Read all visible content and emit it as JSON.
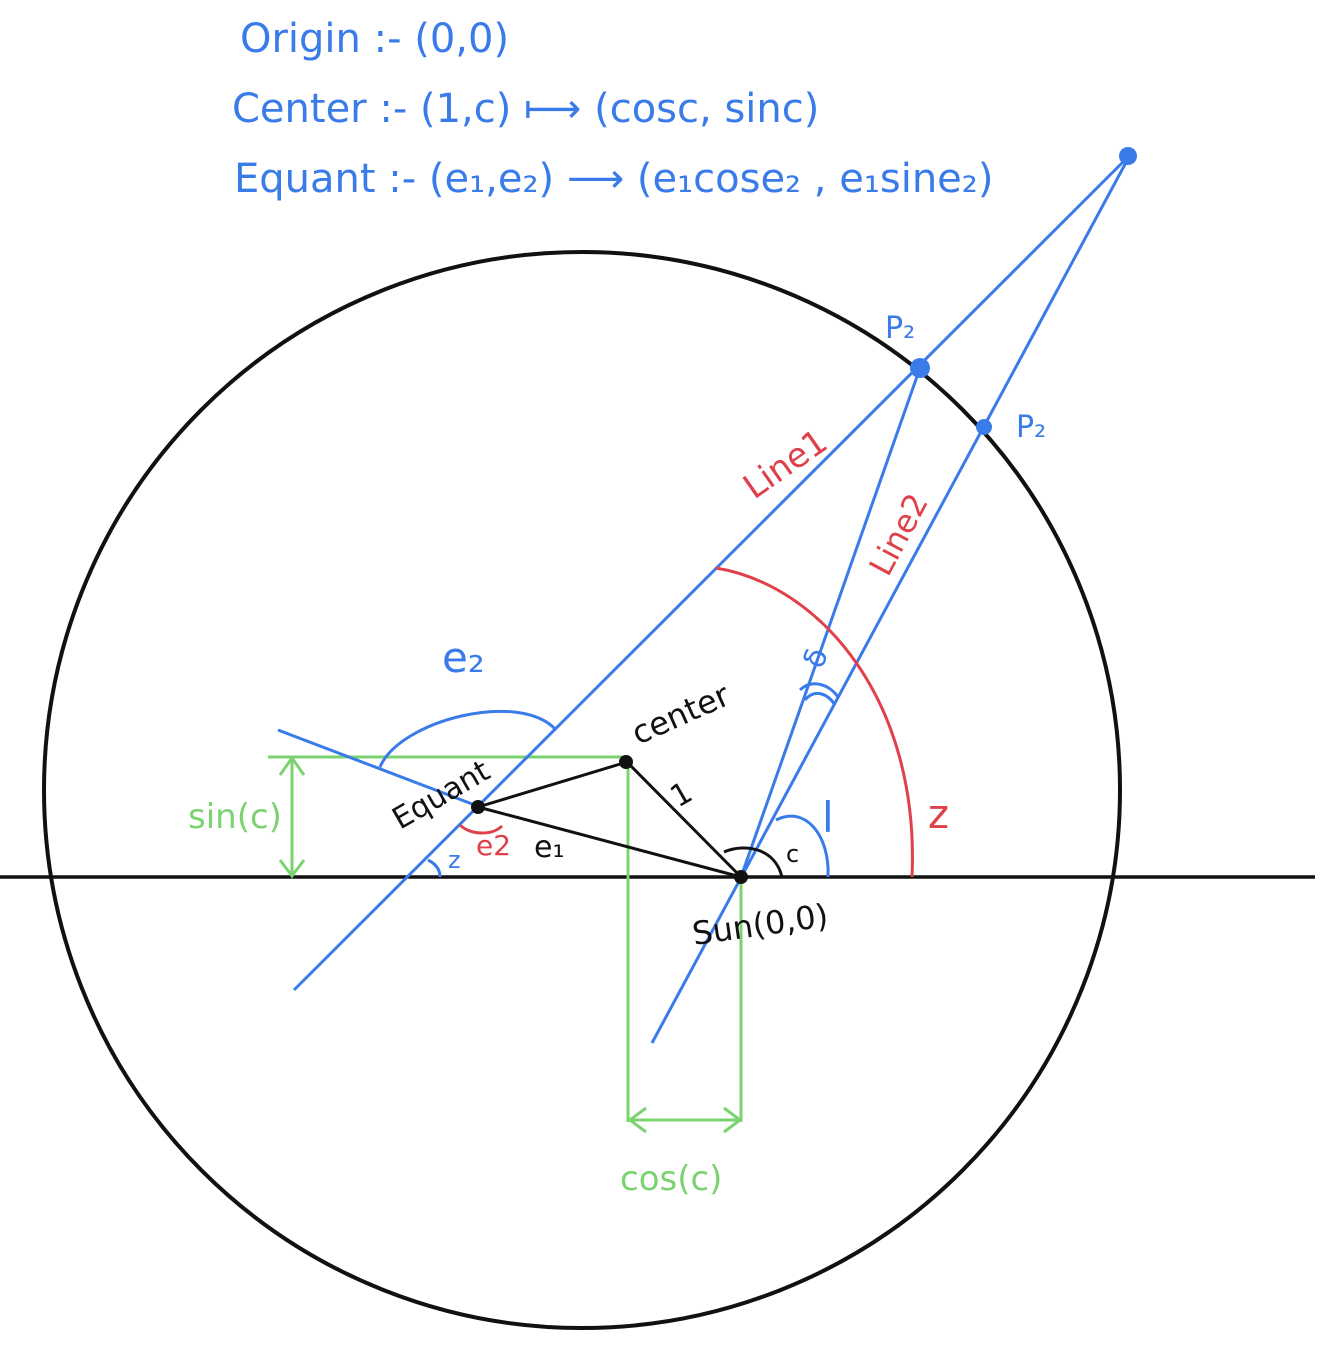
{
  "header": {
    "line1": "Origin :- (0,0)",
    "line2": "Center :- (1,c) ⟼ (cosc, sinc)",
    "line3": "Equant :- (e₁,e₂) ⟶ (e₁cose₂ , e₁sine₂)"
  },
  "labels": {
    "p2_top": "P₂",
    "p2_right": "P₂",
    "line1": "Line1",
    "line2": "Line2",
    "e2_blue": "e₂",
    "center": "center",
    "one": "1",
    "equant": "Equant",
    "e2_red": "e2",
    "e1": "e₁",
    "z_small": "z",
    "c": "c",
    "l": "l",
    "z_big": "z",
    "delta": "δ",
    "sin_c": "sin(c)",
    "cos_c": "cos(c)",
    "sun": "Sun(0,0)"
  },
  "colors": {
    "blue": "#3a7bea",
    "red": "#e0404a",
    "green": "#7bd36f",
    "black": "#111111"
  }
}
